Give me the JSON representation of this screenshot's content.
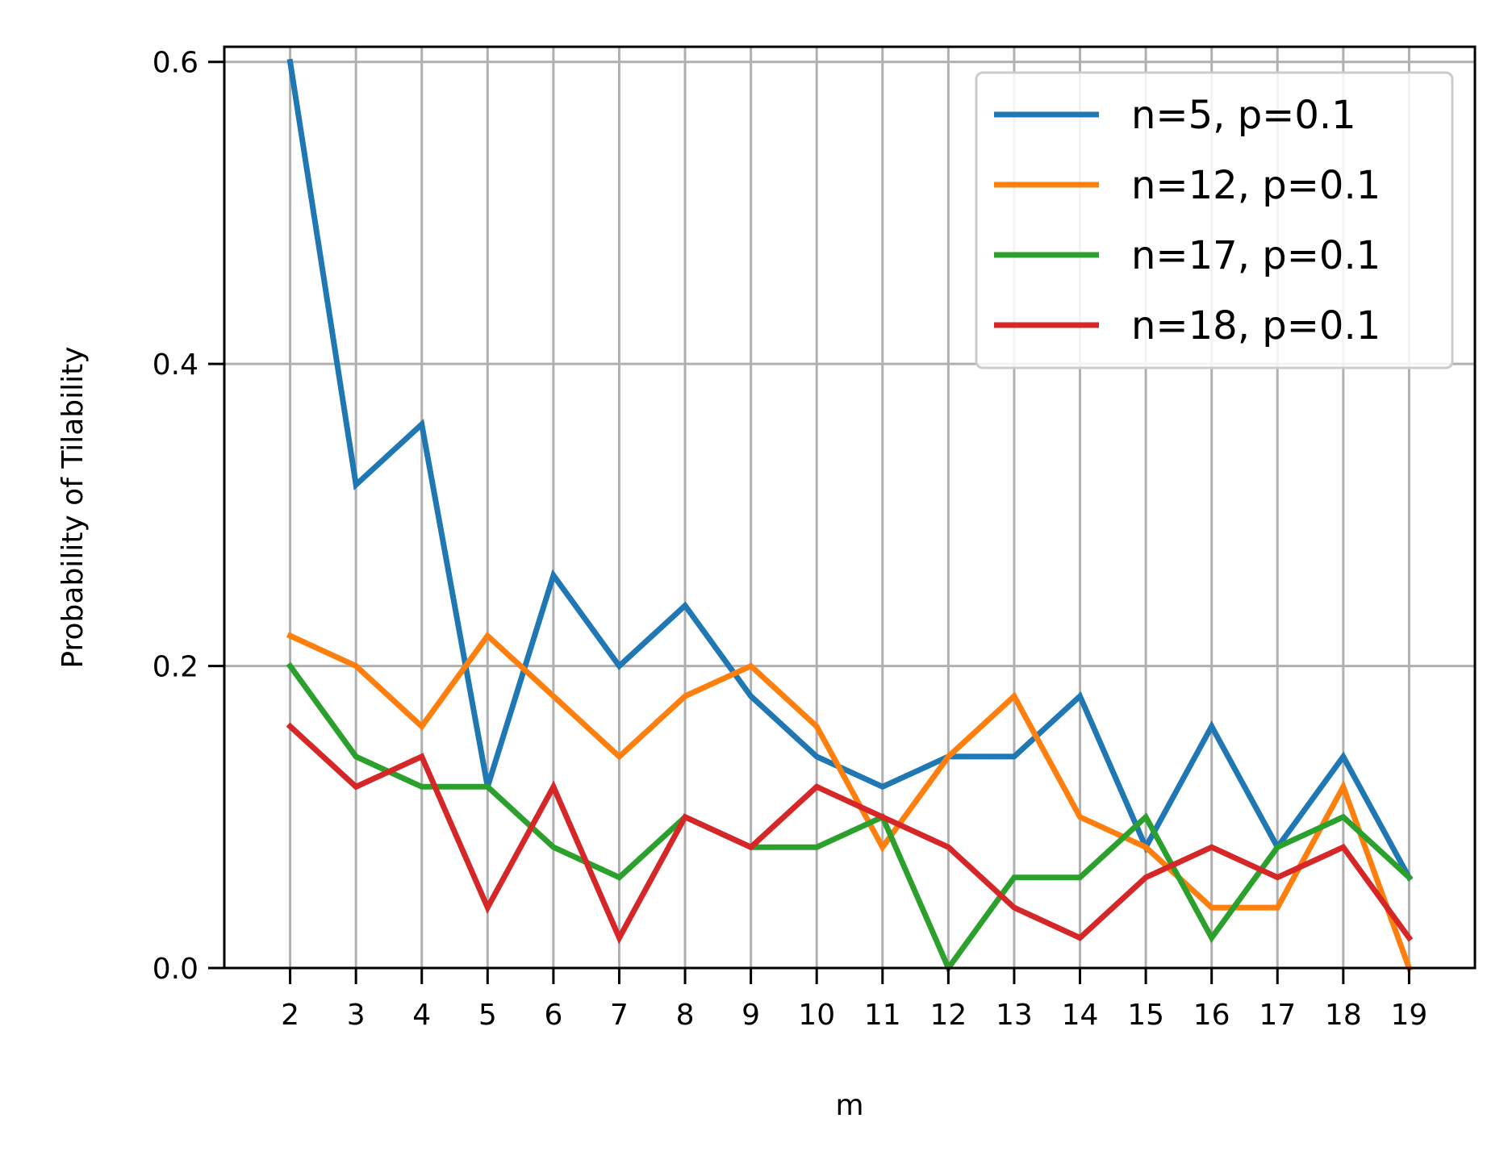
{
  "chart_data": {
    "type": "line",
    "title": "",
    "xlabel": "m",
    "ylabel": "Probability of Tilability",
    "x": [
      2,
      3,
      4,
      5,
      6,
      7,
      8,
      9,
      10,
      11,
      12,
      13,
      14,
      15,
      16,
      17,
      18,
      19
    ],
    "x_ticks": [
      "2",
      "3",
      "4",
      "5",
      "6",
      "7",
      "8",
      "9",
      "10",
      "11",
      "12",
      "13",
      "14",
      "15",
      "16",
      "17",
      "18",
      "19"
    ],
    "y_ticks": [
      "0.0",
      "0.2",
      "0.4",
      "0.6"
    ],
    "y_tick_values": [
      0.0,
      0.2,
      0.4,
      0.6
    ],
    "xlim": [
      1.0,
      20.0
    ],
    "ylim": [
      0.0,
      0.61
    ],
    "grid": true,
    "legend_position": "top-right",
    "series": [
      {
        "name": "n=5, p=0.1",
        "color": "#1f77b4",
        "values": [
          0.6,
          0.32,
          0.36,
          0.12,
          0.26,
          0.2,
          0.24,
          0.18,
          0.14,
          0.12,
          0.14,
          0.14,
          0.18,
          0.08,
          0.16,
          0.08,
          0.14,
          0.06
        ]
      },
      {
        "name": "n=12, p=0.1",
        "color": "#ff7f0e",
        "values": [
          0.22,
          0.2,
          0.16,
          0.22,
          0.18,
          0.14,
          0.18,
          0.2,
          0.16,
          0.08,
          0.14,
          0.18,
          0.1,
          0.08,
          0.04,
          0.04,
          0.12,
          0.0
        ]
      },
      {
        "name": "n=17, p=0.1",
        "color": "#2ca02c",
        "values": [
          0.2,
          0.14,
          0.12,
          0.12,
          0.08,
          0.06,
          0.1,
          0.08,
          0.08,
          0.1,
          0.0,
          0.06,
          0.06,
          0.1,
          0.02,
          0.08,
          0.1,
          0.06
        ]
      },
      {
        "name": "n=18, p=0.1",
        "color": "#d62728",
        "values": [
          0.16,
          0.12,
          0.14,
          0.04,
          0.12,
          0.02,
          0.1,
          0.08,
          0.12,
          0.1,
          0.08,
          0.04,
          0.02,
          0.06,
          0.08,
          0.06,
          0.08,
          0.02
        ]
      }
    ]
  }
}
